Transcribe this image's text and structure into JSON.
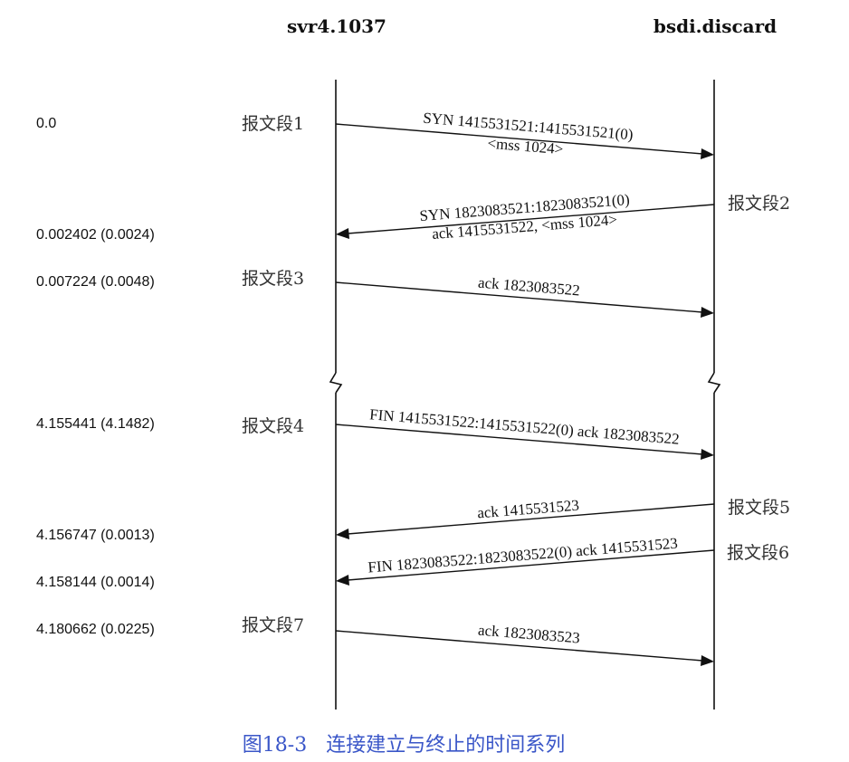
{
  "hosts": {
    "left": "svr4.1037",
    "right": "bsdi.discard"
  },
  "timestamps": [
    "0.0",
    "0.002402 (0.0024)",
    "0.007224 (0.0048)",
    "4.155441 (4.1482)",
    "4.156747 (0.0013)",
    "4.158144 (0.0014)",
    "4.180662 (0.0225)"
  ],
  "segments": [
    "报文段1",
    "报文段2",
    "报文段3",
    "报文段4",
    "报文段5",
    "报文段6",
    "报文段7"
  ],
  "messages": [
    {
      "from": "left",
      "to": "right",
      "lines": [
        "SYN  1415531521:1415531521(0)",
        "<mss 1024>"
      ]
    },
    {
      "from": "right",
      "to": "left",
      "lines": [
        "SYN  1823083521:1823083521(0)",
        "ack 1415531522, <mss 1024>"
      ]
    },
    {
      "from": "left",
      "to": "right",
      "lines": [
        "ack 1823083522"
      ]
    },
    {
      "from": "left",
      "to": "right",
      "lines": [
        "FIN  1415531522:1415531522(0) ack 1823083522"
      ]
    },
    {
      "from": "right",
      "to": "left",
      "lines": [
        "ack 1415531523"
      ]
    },
    {
      "from": "right",
      "to": "left",
      "lines": [
        "FIN  1823083522:1823083522(0) ack 1415531523"
      ]
    },
    {
      "from": "left",
      "to": "right",
      "lines": [
        "ack 1823083523"
      ]
    }
  ],
  "caption": "图18-3   连接建立与终止的时间系列"
}
